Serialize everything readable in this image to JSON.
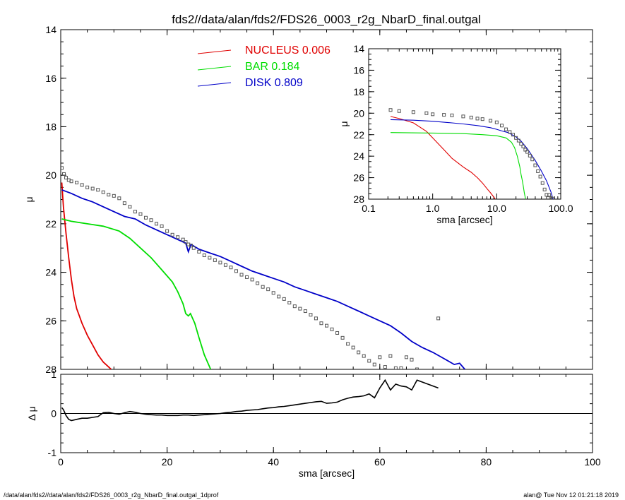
{
  "title": "fds2//data/alan/fds2/FDS26_0003_r2g_NbarD_final.outgal",
  "footer": {
    "left": "/data/alan/fds2//data/alan/fds2/FDS26_0003_r2g_NbarD_final.outgal_1dprof",
    "right": "alan@  Tue Nov 12 01:21:18 2019"
  },
  "colors": {
    "nucleus": "#e00000",
    "bar": "#00dd00",
    "disk": "#0000c8",
    "data": "#555555"
  },
  "chart_data": [
    {
      "id": "main",
      "type": "line",
      "xlabel": "",
      "ylabel": "μ",
      "xlim": [
        0,
        100
      ],
      "ylim": [
        28,
        14
      ],
      "xticks": [
        "0",
        "20",
        "40",
        "60",
        "80",
        "100"
      ],
      "yticks": [
        "14",
        "16",
        "18",
        "20",
        "22",
        "24",
        "26",
        "28"
      ],
      "legend": {
        "placement": "top",
        "entries": [
          {
            "name": "NUCLEUS",
            "value": "0.006",
            "color": "#e00000"
          },
          {
            "name": "BAR",
            "value": "0.184",
            "color": "#00dd00"
          },
          {
            "name": "DISK",
            "value": "0.809",
            "color": "#0000c8"
          }
        ]
      },
      "series": [
        {
          "name": "NUCLEUS",
          "color": "#e00000",
          "x": [
            0.2,
            0.5,
            1,
            1.5,
            2,
            2.5,
            3,
            3.5,
            4,
            5,
            6,
            7,
            8,
            9,
            9.5
          ],
          "y": [
            20.3,
            21.3,
            22.4,
            23.4,
            24.3,
            25.0,
            25.5,
            25.8,
            26.1,
            26.6,
            27.0,
            27.4,
            27.7,
            27.9,
            28.0
          ]
        },
        {
          "name": "BAR",
          "color": "#00dd00",
          "x": [
            0.2,
            2,
            5,
            8,
            11,
            13,
            15,
            17,
            19,
            21,
            22,
            23,
            23.5,
            24,
            24.4,
            24.8,
            25.2,
            26,
            27,
            28.2
          ],
          "y": [
            21.8,
            21.9,
            22.0,
            22.1,
            22.3,
            22.6,
            23.0,
            23.4,
            23.9,
            24.4,
            24.8,
            25.3,
            25.7,
            25.8,
            25.7,
            25.9,
            26.1,
            26.7,
            27.4,
            28.0
          ]
        },
        {
          "name": "DISK",
          "color": "#0000c8",
          "x": [
            0.2,
            2,
            4,
            6,
            8,
            10,
            12,
            14,
            16,
            18,
            20,
            22,
            23.5,
            24,
            24.5,
            26,
            28,
            30,
            32,
            34,
            36,
            38,
            40,
            42,
            44,
            46,
            48,
            50,
            52,
            54,
            56,
            58,
            60,
            62,
            64,
            66,
            68,
            70,
            72,
            74,
            75,
            76
          ],
          "y": [
            20.6,
            20.75,
            20.95,
            21.1,
            21.3,
            21.5,
            21.7,
            21.8,
            22.05,
            22.25,
            22.45,
            22.65,
            22.8,
            23.15,
            22.85,
            23.05,
            23.2,
            23.35,
            23.55,
            23.75,
            23.95,
            24.1,
            24.25,
            24.4,
            24.6,
            24.75,
            24.9,
            25.05,
            25.2,
            25.4,
            25.6,
            25.8,
            26.0,
            26.2,
            26.5,
            26.85,
            27.1,
            27.3,
            27.55,
            27.8,
            27.75,
            28.0
          ]
        },
        {
          "name": "",
          "color": "#555555",
          "marker": "square",
          "x": [
            0.2,
            0.6,
            1,
            1.5,
            2,
            3,
            4,
            5,
            6,
            7,
            8,
            9,
            10,
            11,
            12,
            13,
            14,
            15,
            16,
            17,
            18,
            19,
            20,
            21,
            22,
            23,
            23.5,
            24,
            24.5,
            25,
            26,
            27,
            28,
            29,
            30,
            31,
            32,
            33,
            34,
            35,
            36,
            37,
            38,
            39,
            40,
            41,
            42,
            43,
            44,
            45,
            46,
            47,
            48,
            49,
            50,
            51,
            52,
            53,
            54,
            55,
            56,
            57,
            58,
            59,
            60,
            61,
            62,
            63,
            64,
            65,
            66,
            67,
            71
          ],
          "y": [
            19.7,
            19.95,
            20.1,
            20.2,
            20.25,
            20.3,
            20.4,
            20.5,
            20.55,
            20.6,
            20.7,
            20.8,
            20.85,
            20.95,
            21.15,
            21.3,
            21.5,
            21.6,
            21.75,
            21.85,
            22.0,
            22.1,
            22.3,
            22.45,
            22.55,
            22.65,
            22.75,
            22.85,
            22.9,
            23.0,
            23.15,
            23.3,
            23.4,
            23.5,
            23.6,
            23.7,
            23.8,
            23.95,
            24.1,
            24.2,
            24.3,
            24.45,
            24.6,
            24.7,
            24.85,
            25.0,
            25.1,
            25.25,
            25.4,
            25.5,
            25.6,
            25.75,
            25.9,
            26.1,
            26.2,
            26.35,
            26.5,
            26.7,
            26.95,
            27.1,
            27.3,
            27.45,
            27.65,
            27.8,
            27.5,
            27.9,
            27.45,
            27.95,
            27.95,
            27.5,
            27.6,
            28.0,
            25.9
          ]
        }
      ]
    },
    {
      "id": "inset",
      "type": "line",
      "xlabel": "sma [arcsec]",
      "ylabel": "μ",
      "xscale": "log",
      "xlim": [
        0.1,
        100
      ],
      "ylim": [
        28,
        14
      ],
      "xticks": [
        "0.1",
        "1.0",
        "10.0",
        "100.0"
      ],
      "yticks": [
        "14",
        "16",
        "18",
        "20",
        "22",
        "24",
        "26",
        "28"
      ],
      "series": [
        {
          "name": "NUCLEUS",
          "color": "#e00000",
          "x": [
            0.22,
            0.3,
            0.5,
            0.8,
            1,
            1.5,
            2,
            3,
            4,
            5,
            6,
            7,
            8,
            9,
            9.5
          ],
          "y": [
            20.3,
            20.5,
            20.9,
            21.7,
            22.3,
            23.4,
            24.2,
            25.0,
            25.5,
            26.0,
            26.5,
            27.0,
            27.4,
            27.8,
            28.0
          ]
        },
        {
          "name": "BAR",
          "color": "#00dd00",
          "x": [
            0.22,
            1,
            3,
            6,
            10,
            14,
            17,
            19,
            21,
            23,
            24,
            25,
            26,
            27,
            28.2
          ],
          "y": [
            21.8,
            21.85,
            21.9,
            22.0,
            22.1,
            22.3,
            22.7,
            23.2,
            24.0,
            25.0,
            25.7,
            26.2,
            26.8,
            27.4,
            28.0
          ]
        },
        {
          "name": "DISK",
          "color": "#0000c8",
          "x": [
            0.22,
            0.5,
            1,
            2,
            3,
            5,
            8,
            10,
            12,
            15,
            20,
            24,
            30,
            40,
            50,
            60,
            70,
            76
          ],
          "y": [
            20.6,
            20.65,
            20.75,
            20.9,
            21.0,
            21.15,
            21.35,
            21.5,
            21.65,
            21.8,
            22.2,
            22.6,
            23.3,
            24.4,
            25.4,
            26.3,
            27.3,
            28.0
          ]
        },
        {
          "name": "",
          "color": "#555555",
          "marker": "square",
          "x": [
            0.22,
            0.3,
            0.5,
            0.8,
            1,
            1.5,
            2,
            3,
            4,
            5,
            6,
            8,
            10,
            12,
            14,
            16,
            18,
            20,
            22,
            24,
            26,
            28,
            30,
            33,
            36,
            40,
            44,
            48,
            52,
            56,
            60,
            63,
            66,
            70,
            75
          ],
          "y": [
            19.7,
            19.8,
            19.9,
            20.0,
            20.1,
            20.15,
            20.2,
            20.3,
            20.4,
            20.5,
            20.55,
            20.7,
            20.85,
            21.15,
            21.5,
            21.75,
            22.0,
            22.3,
            22.55,
            22.85,
            23.1,
            23.4,
            23.6,
            23.95,
            24.3,
            24.85,
            25.4,
            25.9,
            26.5,
            27.1,
            27.6,
            27.9,
            27.6,
            27.9,
            27.95
          ]
        }
      ]
    },
    {
      "id": "residual",
      "type": "scatter",
      "xlabel": "sma [arcsec]",
      "ylabel": "Δ μ",
      "xlim": [
        0,
        100
      ],
      "ylim": [
        -1,
        1
      ],
      "xticks": [
        "0",
        "20",
        "40",
        "60",
        "80",
        "100"
      ],
      "yticks": [
        "-1",
        "0",
        "1"
      ],
      "series": [
        {
          "name": "",
          "color": "#000000",
          "x": [
            0.2,
            0.5,
            1,
            1.5,
            2,
            3,
            4,
            5,
            6,
            7,
            8,
            9,
            10,
            11,
            12,
            13,
            14,
            15,
            16,
            17,
            18,
            19,
            20,
            21,
            22,
            23,
            24,
            25,
            26,
            27,
            28,
            29,
            30,
            31,
            32,
            33,
            34,
            35,
            36,
            37,
            38,
            39,
            40,
            41,
            42,
            43,
            44,
            45,
            46,
            47,
            48,
            49,
            50,
            51,
            52,
            53,
            54,
            55,
            56,
            57,
            58,
            59,
            60,
            61,
            62,
            63,
            64,
            65,
            66,
            67,
            71
          ],
          "y": [
            0.15,
            0.1,
            -0.05,
            -0.15,
            -0.18,
            -0.15,
            -0.12,
            -0.12,
            -0.1,
            -0.08,
            0.02,
            0.03,
            0.0,
            -0.02,
            0.02,
            0.05,
            0.03,
            0.0,
            -0.02,
            -0.03,
            -0.04,
            -0.04,
            -0.05,
            -0.05,
            -0.05,
            -0.04,
            -0.04,
            -0.05,
            -0.04,
            -0.03,
            -0.02,
            -0.01,
            0.0,
            0.02,
            0.03,
            0.05,
            0.06,
            0.08,
            0.09,
            0.1,
            0.12,
            0.14,
            0.15,
            0.17,
            0.18,
            0.2,
            0.22,
            0.24,
            0.26,
            0.28,
            0.3,
            0.31,
            0.26,
            0.27,
            0.29,
            0.35,
            0.39,
            0.42,
            0.43,
            0.45,
            0.5,
            0.4,
            0.65,
            0.85,
            0.6,
            0.75,
            0.7,
            0.68,
            0.6,
            0.85,
            0.65
          ]
        }
      ]
    }
  ]
}
